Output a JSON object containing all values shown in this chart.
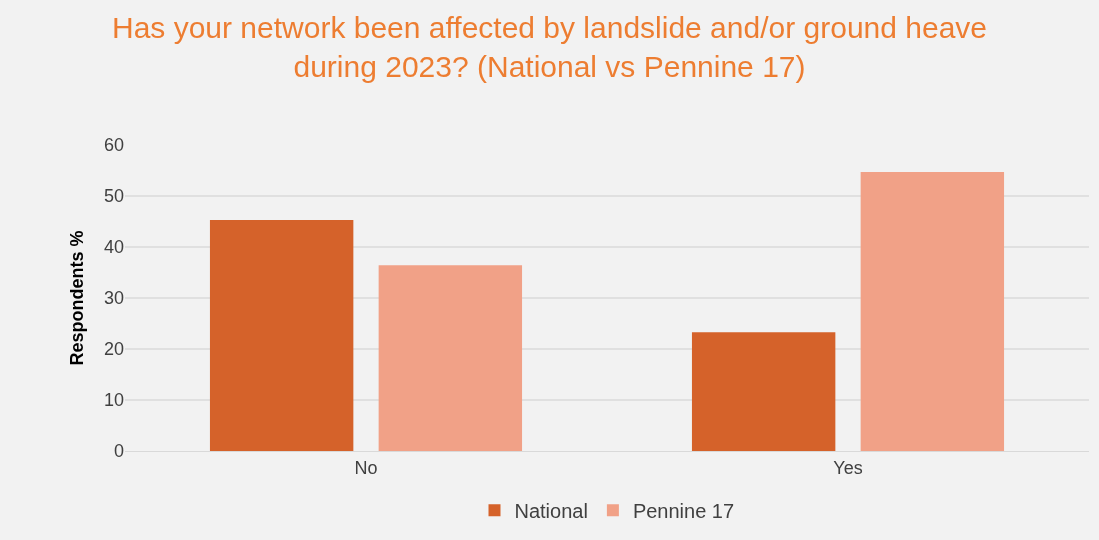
{
  "chart_data": {
    "type": "bar",
    "title": "Has your network been affected by landslide and/or ground heave during 2023? (National vs Pennine 17)",
    "ylabel": "Respondents %",
    "categories": [
      "No",
      "Yes"
    ],
    "series": [
      {
        "name": "National",
        "color": "#d5622a",
        "values": [
          45.3,
          23.3
        ]
      },
      {
        "name": "Pennine 17",
        "color": "#f1a187",
        "values": [
          36.4,
          54.7
        ]
      }
    ],
    "ylim": [
      0,
      60
    ],
    "yticks": [
      0,
      10,
      20,
      30,
      40,
      50,
      60
    ],
    "grid": "y",
    "legend": "bottom"
  }
}
